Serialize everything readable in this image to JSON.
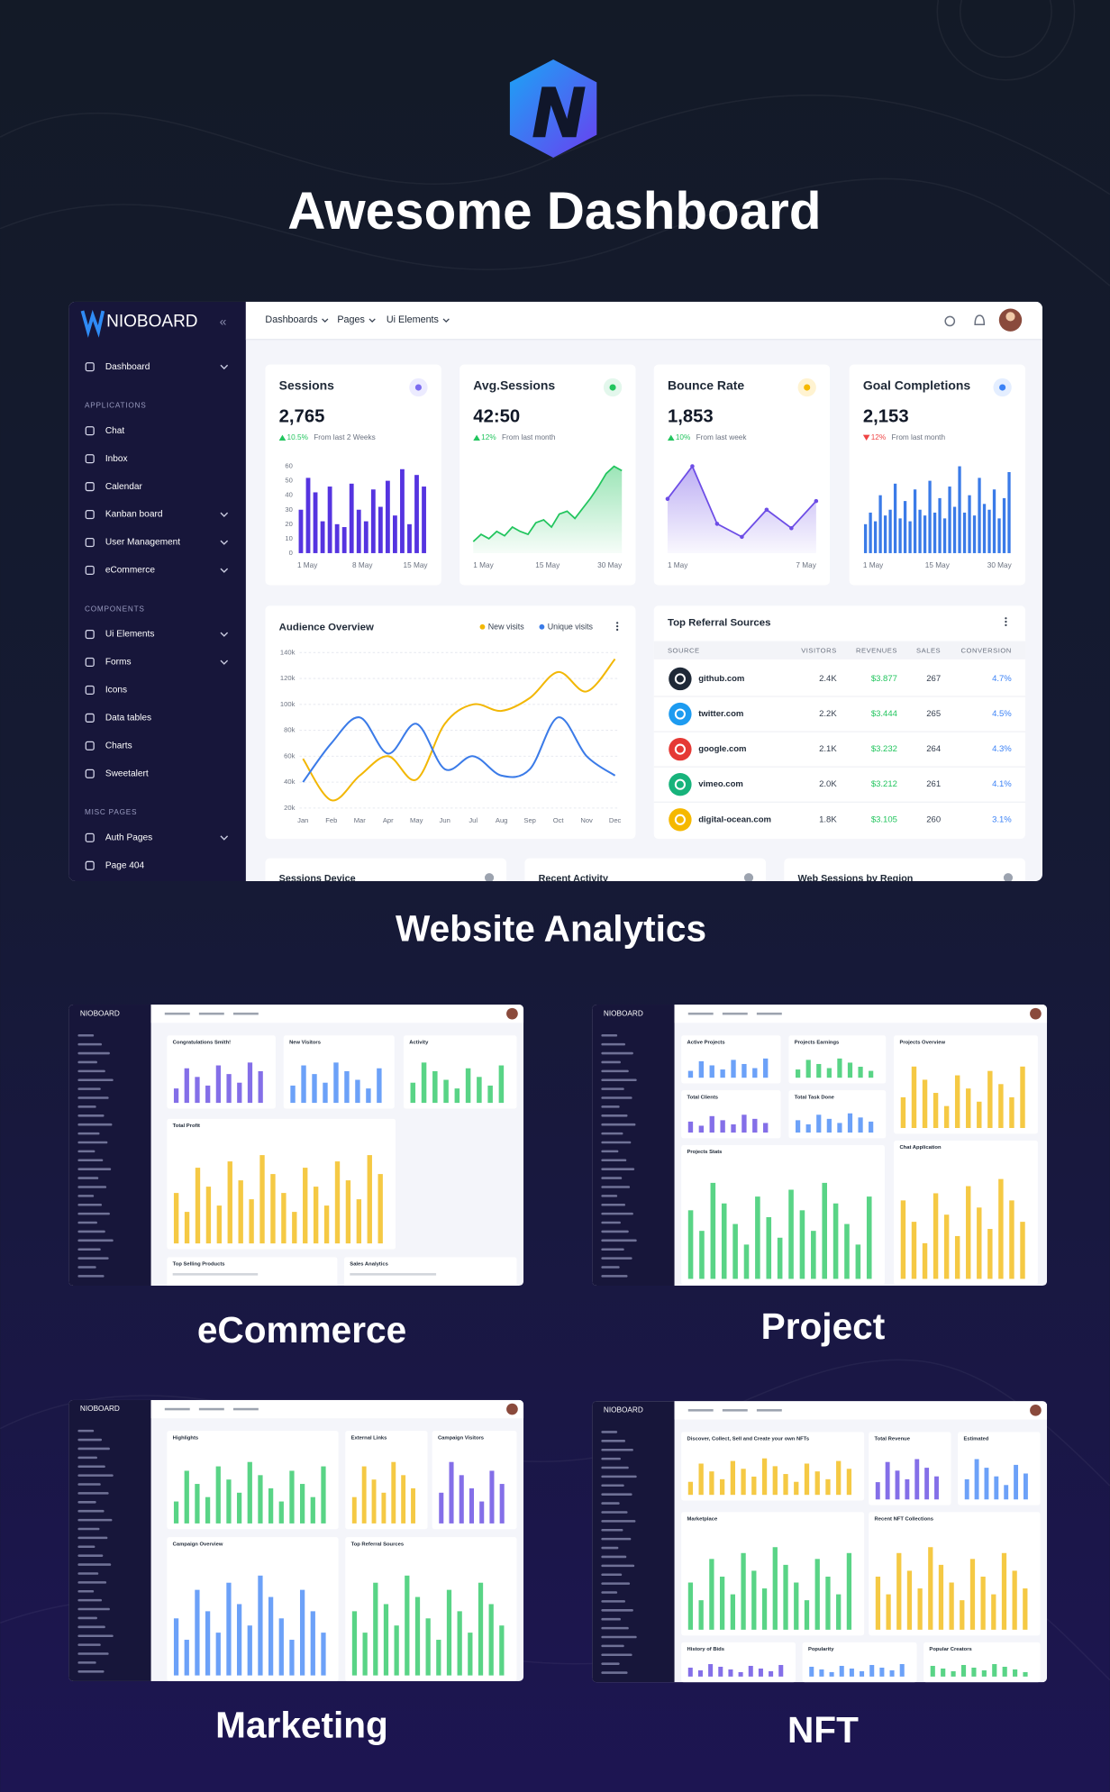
{
  "header": {
    "title": "Awesome Dashboard"
  },
  "dashboard": {
    "brand": "NIOBOARD",
    "top_nav": [
      "Dashboards",
      "Pages",
      "Ui Elements"
    ],
    "sidebar": [
      {
        "items": [
          {
            "label": "Dashboard",
            "submenu": true
          }
        ]
      },
      {
        "heading": "APPLICATIONS",
        "items": [
          {
            "label": "Chat"
          },
          {
            "label": "Inbox"
          },
          {
            "label": "Calendar"
          },
          {
            "label": "Kanban board",
            "submenu": true
          },
          {
            "label": "User Management",
            "submenu": true
          },
          {
            "label": "eCommerce",
            "submenu": true
          }
        ]
      },
      {
        "heading": "COMPONENTS",
        "items": [
          {
            "label": "Ui Elements",
            "submenu": true
          },
          {
            "label": "Forms",
            "submenu": true
          },
          {
            "label": "Icons"
          },
          {
            "label": "Data tables"
          },
          {
            "label": "Charts"
          },
          {
            "label": "Sweetalert"
          }
        ]
      },
      {
        "heading": "MISC PAGES",
        "items": [
          {
            "label": "Auth Pages",
            "submenu": true
          },
          {
            "label": "Page 404"
          }
        ]
      }
    ],
    "cards": [
      {
        "title": "Sessions",
        "value": "2,765",
        "change": "10.5%",
        "change_note": "From last 2 Weeks",
        "trend": "up",
        "icon_color": "#7c6cf0",
        "chart": {
          "type": "bar",
          "color": "#5534e0",
          "values": [
            30,
            52,
            42,
            22,
            46,
            20,
            18,
            48,
            30,
            22,
            44,
            32,
            50,
            26,
            58,
            20,
            54,
            46
          ],
          "ylim": [
            0,
            60
          ],
          "yticks": [
            0,
            10,
            20,
            30,
            40,
            50,
            60
          ],
          "x_labels": [
            "1 May",
            "8 May",
            "15 May"
          ]
        }
      },
      {
        "title": "Avg.Sessions",
        "value": "42:50",
        "change": "12%",
        "change_note": "From last month",
        "trend": "up",
        "icon_color": "#22c55e",
        "chart": {
          "type": "area",
          "color": "#22c55e",
          "values": [
            8,
            13,
            10,
            15,
            12,
            18,
            15,
            13,
            21,
            23,
            18,
            27,
            29,
            24,
            31,
            38,
            46,
            55,
            60,
            57
          ],
          "x_labels": [
            "1 May",
            "15 May",
            "30 May"
          ]
        }
      },
      {
        "title": "Bounce Rate",
        "value": "1,853",
        "change": "10%",
        "change_note": "From last week",
        "trend": "up",
        "icon_color": "#f5b800",
        "chart": {
          "type": "area",
          "color": "#6d4de6",
          "markers": true,
          "values": [
            50,
            80,
            27,
            15,
            40,
            23,
            48
          ],
          "x_labels": [
            "1 May",
            "7 May"
          ]
        }
      },
      {
        "title": "Goal Completions",
        "value": "2,153",
        "change": "12%",
        "change_note": "From last month",
        "trend": "down",
        "icon_color": "#3b82f6",
        "chart": {
          "type": "bar",
          "color": "#3b7be8",
          "values": [
            20,
            28,
            22,
            40,
            26,
            30,
            48,
            24,
            36,
            22,
            44,
            30,
            26,
            50,
            28,
            38,
            24,
            46,
            32,
            60,
            28,
            40,
            26,
            52,
            34,
            30,
            44,
            24,
            38,
            56
          ],
          "x_labels": [
            "1 May",
            "15 May",
            "30 May"
          ]
        }
      }
    ],
    "audience": {
      "title": "Audience Overview",
      "categories": [
        "Jan",
        "Feb",
        "Mar",
        "Apr",
        "May",
        "Jun",
        "Jul",
        "Aug",
        "Sep",
        "Oct",
        "Nov",
        "Dec"
      ],
      "series": [
        {
          "name": "New visits",
          "color": "#f2b705",
          "values": [
            58000,
            26000,
            45000,
            60000,
            42000,
            85000,
            100000,
            95000,
            105000,
            125000,
            110000,
            135000
          ]
        },
        {
          "name": "Unique visits",
          "color": "#3b7be8",
          "values": [
            40000,
            70000,
            90000,
            62000,
            85000,
            50000,
            60000,
            45000,
            50000,
            90000,
            60000,
            45000
          ]
        }
      ],
      "ylim": [
        20000,
        140000
      ],
      "yticks": [
        {
          "value": 20000,
          "label": "20k"
        },
        {
          "value": 40000,
          "label": "40k"
        },
        {
          "value": 60000,
          "label": "60k"
        },
        {
          "value": 80000,
          "label": "80k"
        },
        {
          "value": 100000,
          "label": "100k"
        },
        {
          "value": 120000,
          "label": "120k"
        },
        {
          "value": 140000,
          "label": "140k"
        }
      ],
      "grid": true
    },
    "referrals": {
      "title": "Top Referral Sources",
      "columns": [
        "SOURCE",
        "VISITORS",
        "REVENUES",
        "SALES",
        "CONVERSION"
      ],
      "rows": [
        {
          "icon_color": "#1f2937",
          "cells": [
            "github.com",
            "2.4K",
            "$3.877",
            "267",
            "4.7%"
          ]
        },
        {
          "icon_color": "#1d9bf0",
          "cells": [
            "twitter.com",
            "2.2K",
            "$3.444",
            "265",
            "4.5%"
          ]
        },
        {
          "icon_color": "#e53935",
          "cells": [
            "google.com",
            "2.1K",
            "$3.232",
            "264",
            "4.3%"
          ]
        },
        {
          "icon_color": "#17b37b",
          "cells": [
            "vimeo.com",
            "2.0K",
            "$3.212",
            "261",
            "4.1%"
          ]
        },
        {
          "icon_color": "#f5b800",
          "cells": [
            "digital-ocean.com",
            "1.8K",
            "$3.105",
            "260",
            "3.1%"
          ]
        }
      ]
    },
    "bottom_cards": [
      "Sessions Device",
      "Recent Activity",
      "Web Sessions by Region"
    ]
  },
  "caption": "Website Analytics",
  "previews": [
    {
      "label": "eCommerce",
      "cards": [
        "Congratulations Smith!",
        "New Visitors",
        "Activity",
        "Total Profit",
        "Top Selling Products",
        "Sales Analytics"
      ]
    },
    {
      "label": "Project",
      "cards": [
        "Active Projects",
        "Projects Earnings",
        "Projects Overview",
        "Total Clients",
        "Total Task Done",
        "Projects Stats",
        "Chat Application"
      ]
    },
    {
      "label": "Marketing",
      "cards": [
        "Highlights",
        "External Links",
        "Campaign Visitors",
        "Campaign Overview",
        "Top Referral Sources"
      ]
    },
    {
      "label": "NFT",
      "cards": [
        "Discover, Collect, Sell and Create your own NFTs",
        "Total Revenue",
        "Estimated",
        "Marketplace",
        "Recent NFT Collections",
        "History of Bids",
        "Popularity",
        "Popular Creators"
      ]
    }
  ]
}
